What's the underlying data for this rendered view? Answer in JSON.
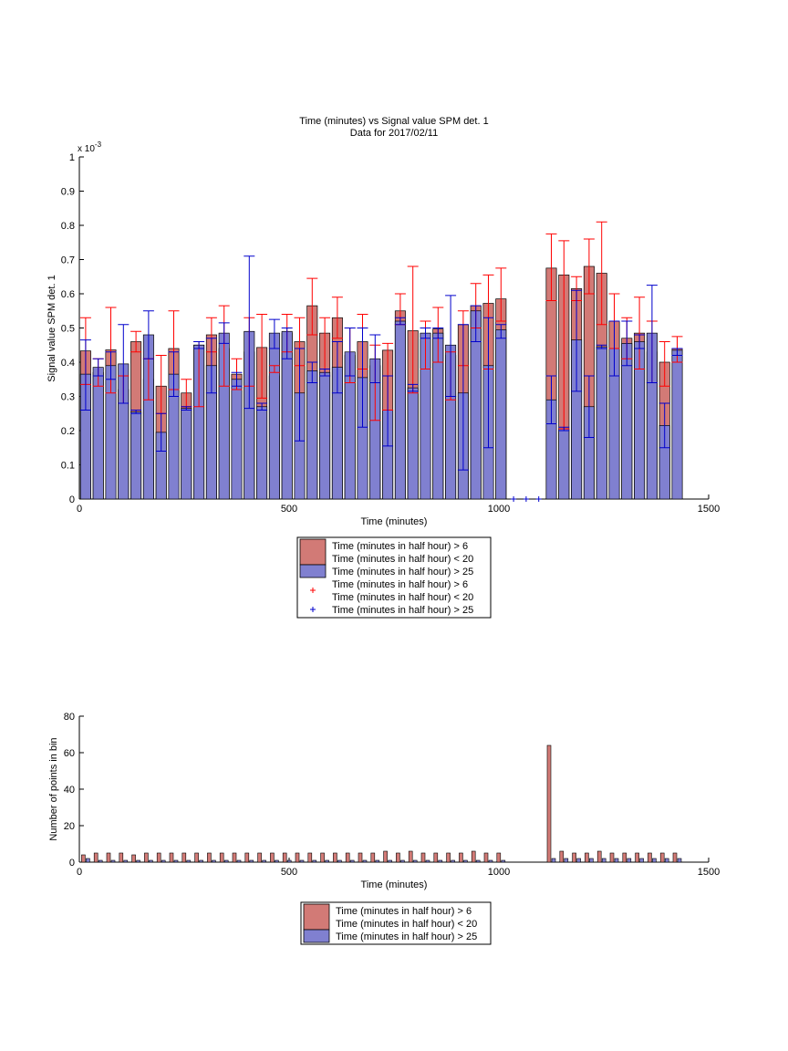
{
  "figure": {
    "title_line1": "Time (minutes) vs Signal value SPM det. 1",
    "title_line2": "Data for 2017/02/11"
  },
  "colors": {
    "red_fill": "#d27a76",
    "blue_fill": "#8080d0",
    "red_err": "#ff0000",
    "blue_err": "#0000cc"
  },
  "chart_data": [
    {
      "type": "bar",
      "title": "Time (minutes) vs Signal value SPM det. 1\nData for 2017/02/11",
      "xlabel": "Time (minutes)",
      "ylabel": "Signal value SPM det. 1",
      "y_exponent_label": "x 10",
      "y_exponent_power": "-3",
      "xlim": [
        0,
        1500
      ],
      "ylim": [
        0,
        1
      ],
      "xticks": [
        "0",
        "500",
        "1000",
        "1500"
      ],
      "yticks": [
        "0",
        "0.1",
        "0.2",
        "0.3",
        "0.4",
        "0.5",
        "0.6",
        "0.7",
        "0.8",
        "0.9",
        "1"
      ],
      "legend": {
        "placement": "below",
        "entries": [
          {
            "marker": "red-bar",
            "line1": "Time (minutes in half hour) > 6",
            "line2": "Time (minutes in half hour) < 20"
          },
          {
            "marker": "blue-bar",
            "line1": "Time (minutes in half hour) > 25",
            "line2": ""
          },
          {
            "marker": "red-plus",
            "line1": "Time (minutes in half hour) > 6",
            "line2": "Time (minutes in half hour) < 20"
          },
          {
            "marker": "blue-plus",
            "line1": "Time (minutes in half hour) > 25",
            "line2": ""
          }
        ]
      },
      "x": [
        15,
        45,
        75,
        105,
        135,
        165,
        195,
        225,
        255,
        285,
        315,
        345,
        375,
        405,
        435,
        465,
        495,
        525,
        555,
        585,
        615,
        645,
        675,
        705,
        735,
        765,
        795,
        825,
        855,
        885,
        915,
        945,
        975,
        1005,
        1035,
        1065,
        1095,
        1125,
        1155,
        1185,
        1215,
        1245,
        1275,
        1305,
        1335,
        1365,
        1395,
        1425
      ],
      "series": [
        {
          "name": "Time (minutes in half hour) > 6 Time (minutes in half hour) < 20",
          "values": [
            0.433,
            0.37,
            0.436,
            0.32,
            0.46,
            0.35,
            0.33,
            0.44,
            0.31,
            0.45,
            0.48,
            0.44,
            0.365,
            0.43,
            0.443,
            0.36,
            0.485,
            0.46,
            0.565,
            0.485,
            0.53,
            0.42,
            0.46,
            0.39,
            0.435,
            0.55,
            0.492,
            0.46,
            0.497,
            0.42,
            0.51,
            0.565,
            0.572,
            0.585,
            0,
            0,
            0,
            0.675,
            0.655,
            0.615,
            0.68,
            0.66,
            0.52,
            0.47,
            0.485,
            0.43,
            0.4,
            0.44
          ],
          "err_low": [
            0.335,
            0.33,
            0.31,
            0.28,
            0.43,
            0.29,
            0.25,
            0.32,
            0.27,
            0.27,
            0.43,
            0.33,
            0.32,
            0.33,
            0.295,
            0.37,
            0.43,
            0.39,
            0.48,
            0.36,
            0.47,
            0.34,
            0.38,
            0.23,
            0.26,
            0.51,
            0.31,
            0.38,
            0.4,
            0.29,
            0.39,
            0.5,
            0.38,
            0.52,
            0,
            0,
            0,
            0.58,
            0.205,
            0.58,
            0.6,
            0.51,
            0.44,
            0.41,
            0.38,
            0.34,
            0.33,
            0.4
          ],
          "err_high": [
            0.53,
            0.41,
            0.56,
            0.36,
            0.49,
            0.41,
            0.42,
            0.55,
            0.35,
            0.46,
            0.53,
            0.565,
            0.41,
            0.53,
            0.54,
            0.39,
            0.54,
            0.53,
            0.645,
            0.53,
            0.59,
            0.5,
            0.54,
            0.45,
            0.455,
            0.6,
            0.68,
            0.52,
            0.56,
            0.43,
            0.55,
            0.63,
            0.655,
            0.675,
            0,
            0,
            0,
            0.775,
            0.755,
            0.65,
            0.76,
            0.81,
            0.6,
            0.53,
            0.59,
            0.52,
            0.46,
            0.475
          ]
        },
        {
          "name": "Time (minutes in half hour) > 25",
          "values": [
            0.365,
            0.385,
            0.39,
            0.395,
            0.255,
            0.48,
            0.195,
            0.365,
            0.265,
            0.45,
            0.39,
            0.485,
            0.35,
            0.49,
            0.27,
            0.485,
            0.49,
            0.31,
            0.375,
            0.37,
            0.385,
            0.43,
            0.355,
            0.41,
            0.26,
            0.52,
            0.325,
            0.485,
            0.485,
            0.45,
            0.31,
            0.55,
            0.39,
            0.495,
            0,
            0,
            0,
            0.29,
            0.205,
            0.465,
            0.27,
            0.445,
            0.44,
            0.455,
            0.46,
            0.485,
            0.215,
            0.435
          ],
          "err_low": [
            0.26,
            0.36,
            0.35,
            0.28,
            0.25,
            0.41,
            0.14,
            0.3,
            0.26,
            0.44,
            0.31,
            0.455,
            0.33,
            0.265,
            0.26,
            0.44,
            0.41,
            0.17,
            0.34,
            0.36,
            0.31,
            0.36,
            0.21,
            0.34,
            0.155,
            0.51,
            0.315,
            0.47,
            0.47,
            0.3,
            0.085,
            0.46,
            0.15,
            0.47,
            0,
            0,
            0,
            0.22,
            0.2,
            0.315,
            0.18,
            0.44,
            0.36,
            0.39,
            0.44,
            0.34,
            0.15,
            0.42
          ],
          "err_high": [
            0.465,
            0.41,
            0.43,
            0.51,
            0.26,
            0.55,
            0.25,
            0.43,
            0.27,
            0.46,
            0.47,
            0.515,
            0.37,
            0.71,
            0.28,
            0.525,
            0.5,
            0.44,
            0.4,
            0.38,
            0.46,
            0.5,
            0.5,
            0.48,
            0.36,
            0.53,
            0.335,
            0.5,
            0.5,
            0.595,
            0.51,
            0.565,
            0.53,
            0.51,
            0,
            0,
            0,
            0.36,
            0.21,
            0.61,
            0.36,
            0.45,
            0.52,
            0.52,
            0.48,
            0.625,
            0.28,
            0.44
          ]
        }
      ],
      "zero_markers_x": [
        1035,
        1065,
        1095
      ]
    },
    {
      "type": "bar",
      "xlabel": "Time (minutes)",
      "ylabel": "Number of points in bin",
      "xlim": [
        0,
        1500
      ],
      "ylim": [
        0,
        80
      ],
      "xticks": [
        "0",
        "500",
        "1000",
        "1500"
      ],
      "yticks": [
        "0",
        "20",
        "40",
        "60",
        "80"
      ],
      "legend": {
        "placement": "below",
        "entries": [
          {
            "marker": "red-bar",
            "line1": "Time (minutes in half hour) > 6",
            "line2": "Time (minutes in half hour) < 20"
          },
          {
            "marker": "blue-bar",
            "line1": "Time (minutes in half hour) > 25",
            "line2": ""
          }
        ]
      },
      "x": [
        15,
        45,
        75,
        105,
        135,
        165,
        195,
        225,
        255,
        285,
        315,
        345,
        375,
        405,
        435,
        465,
        495,
        525,
        555,
        585,
        615,
        645,
        675,
        705,
        735,
        765,
        795,
        825,
        855,
        885,
        915,
        945,
        975,
        1005,
        1035,
        1065,
        1095,
        1125,
        1155,
        1185,
        1215,
        1245,
        1275,
        1305,
        1335,
        1365,
        1395,
        1425
      ],
      "series": [
        {
          "name": "Time (minutes in half hour) > 6 Time (minutes in half hour) < 20",
          "values": [
            4,
            5,
            5,
            5,
            4,
            5,
            5,
            5,
            5,
            5,
            5,
            5,
            5,
            5,
            5,
            5,
            5,
            5,
            5,
            5,
            5,
            5,
            5,
            5,
            6,
            5,
            6,
            5,
            5,
            5,
            5,
            6,
            5,
            5,
            0,
            0,
            0,
            64,
            6,
            5,
            5,
            6,
            5,
            5,
            5,
            5,
            5,
            5
          ]
        },
        {
          "name": "Time (minutes in half hour) > 25",
          "values": [
            2,
            1,
            1,
            1,
            1,
            1,
            1,
            1,
            1,
            1,
            1,
            1,
            1,
            1,
            1,
            1,
            1,
            1,
            1,
            1,
            1,
            1,
            1,
            1,
            1,
            1,
            1,
            1,
            1,
            1,
            1,
            1,
            1,
            1,
            0,
            0,
            0,
            2,
            2,
            2,
            2,
            2,
            2,
            2,
            2,
            2,
            2,
            2
          ]
        }
      ]
    }
  ]
}
